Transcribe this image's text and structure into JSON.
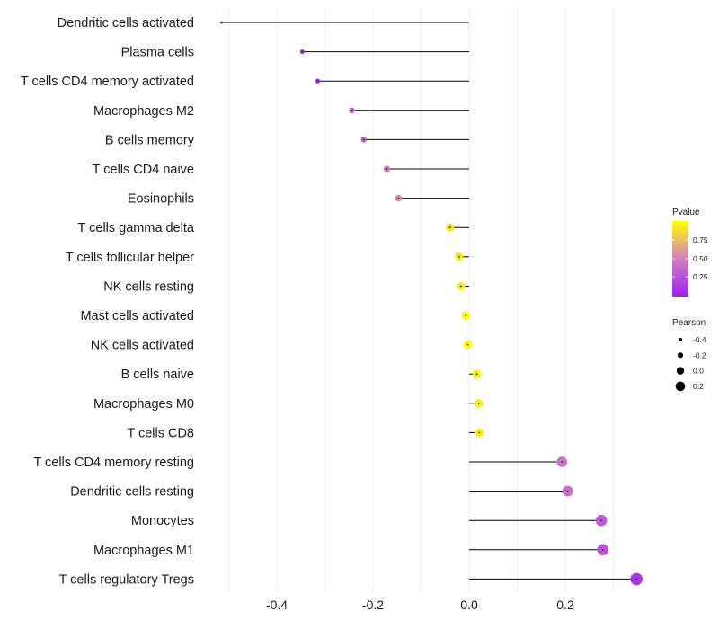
{
  "chart_data": {
    "type": "lollipop",
    "categories": [
      "Dendritic cells activated",
      "Plasma cells",
      "T cells CD4 memory activated",
      "Macrophages M2",
      "B cells memory",
      "T cells CD4 naive",
      "Eosinophils",
      "T cells gamma delta",
      "T cells follicular helper",
      "NK cells resting",
      "Mast cells activated",
      "NK cells activated",
      "B cells naive",
      "Macrophages M0",
      "T cells CD8",
      "T cells CD4 memory resting",
      "Dendritic cells resting",
      "Monocytes",
      "Macrophages M1",
      "T cells regulatory  Tregs"
    ],
    "pearson": [
      -0.515,
      -0.347,
      -0.315,
      -0.244,
      -0.219,
      -0.171,
      -0.147,
      -0.04,
      -0.021,
      -0.017,
      -0.007,
      -0.003,
      0.016,
      0.02,
      0.021,
      0.193,
      0.205,
      0.275,
      0.278,
      0.348
    ],
    "pvalue": [
      0.01,
      0.1,
      0.12,
      0.3,
      0.35,
      0.5,
      0.55,
      0.9,
      0.92,
      0.93,
      0.97,
      0.99,
      0.95,
      0.93,
      0.93,
      0.45,
      0.42,
      0.3,
      0.28,
      0.12
    ],
    "x_axis": {
      "ticks": [
        -0.4,
        -0.2,
        0.0,
        0.2
      ],
      "tick_labels": [
        "-0.4",
        "-0.2",
        "0.0",
        "0.2"
      ],
      "range": [
        -0.53,
        0.37
      ],
      "label": ""
    },
    "grid": true,
    "color_legend": {
      "title": "Pvalue",
      "ticks": [
        0.25,
        0.5,
        0.75
      ],
      "tick_labels": [
        "0.25",
        "0.50",
        "0.75"
      ],
      "low_color": "#a020f0",
      "high_color": "#ffff00",
      "placement": "right"
    },
    "size_legend": {
      "title": "Pearson",
      "values": [
        -0.4,
        -0.2,
        0.0,
        0.2
      ],
      "labels": [
        "-0.4",
        "-0.2",
        "0.0",
        "0.2"
      ],
      "placement": "right"
    },
    "colors": {
      "stem": "#000000",
      "grid": "#ebebeb",
      "background": "#ffffff"
    }
  }
}
